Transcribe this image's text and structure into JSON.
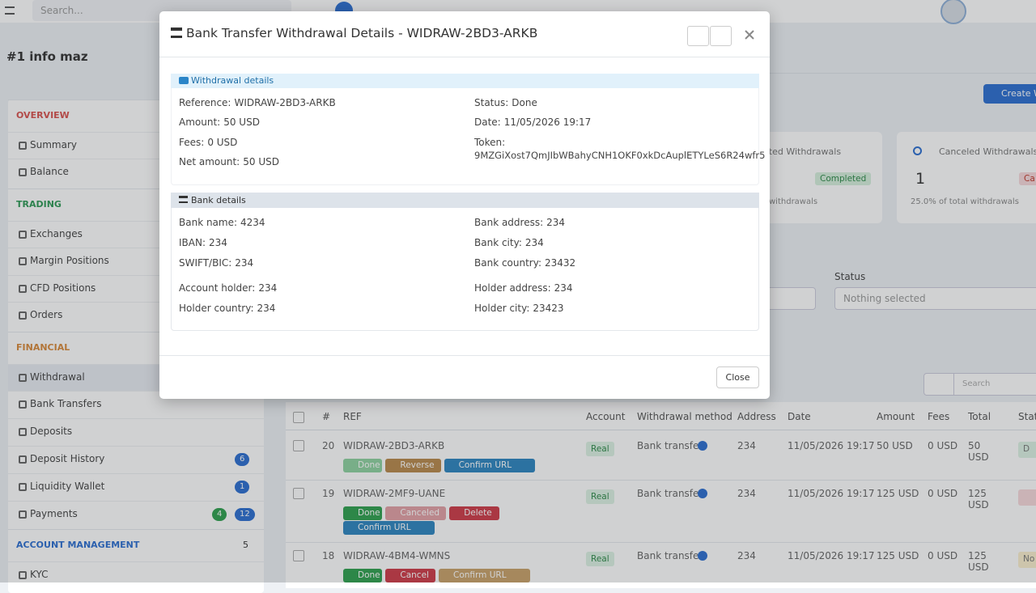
{
  "topbar": {
    "search_placeholder": "Search..."
  },
  "page_title": "#1 info maz",
  "sidebar": {
    "sections": [
      {
        "title": "OVERVIEW",
        "items": [
          {
            "label": "Summary"
          },
          {
            "label": "Balance"
          }
        ]
      },
      {
        "title": "TRADING",
        "items": [
          {
            "label": "Exchanges"
          },
          {
            "label": "Margin Positions"
          },
          {
            "label": "CFD Positions"
          },
          {
            "label": "Orders"
          }
        ]
      },
      {
        "title": "FINANCIAL",
        "items": [
          {
            "label": "Withdrawal"
          },
          {
            "label": "Bank Transfers"
          },
          {
            "label": "Deposits"
          },
          {
            "label": "Deposit History",
            "badges": [
              "6"
            ]
          },
          {
            "label": "Liquidity Wallet",
            "badges": [
              "1"
            ]
          },
          {
            "label": "Payments",
            "badges": [
              "4",
              "12"
            ]
          }
        ]
      },
      {
        "title": "ACCOUNT MANAGEMENT",
        "count": "5",
        "items": [
          {
            "label": "KYC"
          }
        ]
      }
    ]
  },
  "create_button": "Create W",
  "cards": [
    {
      "title": "eted Withdrawals",
      "badge": "Completed",
      "note": "withdrawals"
    },
    {
      "title": "Canceled Withdrawals",
      "count": "1",
      "badge": "Ca",
      "note": "25.0% of total withdrawals"
    }
  ],
  "filters": {
    "status_label": "Status",
    "status_placeholder": "Nothing selected"
  },
  "table_search_placeholder": "Search",
  "table": {
    "headers": [
      "#",
      "REF",
      "Account",
      "Withdrawal method",
      "Address",
      "Date",
      "Amount",
      "Fees",
      "Total",
      "Stat"
    ],
    "rows": [
      {
        "num": "20",
        "ref": "WIDRAW-2BD3-ARKB",
        "account": "Real",
        "method": "Bank transfer",
        "address": "234",
        "date": "11/05/2026 19:17",
        "amount": "50 USD",
        "fees": "0 USD",
        "total": "50 USD",
        "status": "D",
        "actions": [
          {
            "label": "Done",
            "color": "#8fd3a0"
          },
          {
            "label": "Reverse",
            "color": "#b98a4c"
          },
          {
            "label": "Confirm URL",
            "color": "#2e86c1"
          }
        ]
      },
      {
        "num": "19",
        "ref": "WIDRAW-2MF9-UANE",
        "account": "Real",
        "method": "Bank transfer",
        "address": "234",
        "date": "11/05/2026 19:17",
        "amount": "125 USD",
        "fees": "0 USD",
        "total": "125 USD",
        "actions": [
          {
            "label": "Done",
            "color": "#2fa14f"
          },
          {
            "label": "Canceled",
            "color": "#e3a1a6"
          },
          {
            "label": "Delete",
            "color": "#cf3b48"
          },
          {
            "label": "Confirm URL",
            "color": "#2e86c1"
          }
        ]
      },
      {
        "num": "18",
        "ref": "WIDRAW-4BM4-WMNS",
        "account": "Real",
        "method": "Bank transfer",
        "address": "234",
        "date": "11/05/2026 19:17",
        "amount": "125 USD",
        "fees": "0 USD",
        "total": "125 USD",
        "status": "No",
        "actions": [
          {
            "label": "Done",
            "color": "#2fa14f"
          },
          {
            "label": "Cancel",
            "color": "#cf3b48"
          },
          {
            "label": "Confirm URL",
            "color": "#c9a26a"
          }
        ]
      }
    ]
  },
  "modal": {
    "title": "Bank Transfer Withdrawal Details - WIDRAW-2BD3-ARKB",
    "withdrawal_section": {
      "title": "Withdrawal details",
      "left": [
        {
          "label": "Reference:",
          "value": "WIDRAW-2BD3-ARKB"
        },
        {
          "label": "Amount:",
          "value": "50 USD"
        },
        {
          "label": "Fees:",
          "value": "0 USD"
        },
        {
          "label": "Net amount:",
          "value": "50 USD"
        }
      ],
      "right": [
        {
          "label": "Status:",
          "value": "Done"
        },
        {
          "label": "Date:",
          "value": "11/05/2026 19:17"
        },
        {
          "label": "Token:",
          "value": "9MZGiXost7QmJIbWBahyCNH1OKF0xkDcAuplETYLeS6R24wfr5"
        }
      ]
    },
    "bank_section": {
      "title": "Bank details",
      "left": [
        {
          "label": "Bank name:",
          "value": "4234"
        },
        {
          "label": "IBAN:",
          "value": "234"
        },
        {
          "label": "SWIFT/BIC:",
          "value": "234"
        },
        {
          "label": "Account holder:",
          "value": "234"
        },
        {
          "label": "Holder country:",
          "value": "234"
        }
      ],
      "right": [
        {
          "label": "Bank address:",
          "value": "234"
        },
        {
          "label": "Bank city:",
          "value": "234"
        },
        {
          "label": "Bank country:",
          "value": "23432"
        },
        {
          "label": "Holder address:",
          "value": "234"
        },
        {
          "label": "Holder city:",
          "value": "23423"
        }
      ]
    },
    "close_button": "Close"
  }
}
